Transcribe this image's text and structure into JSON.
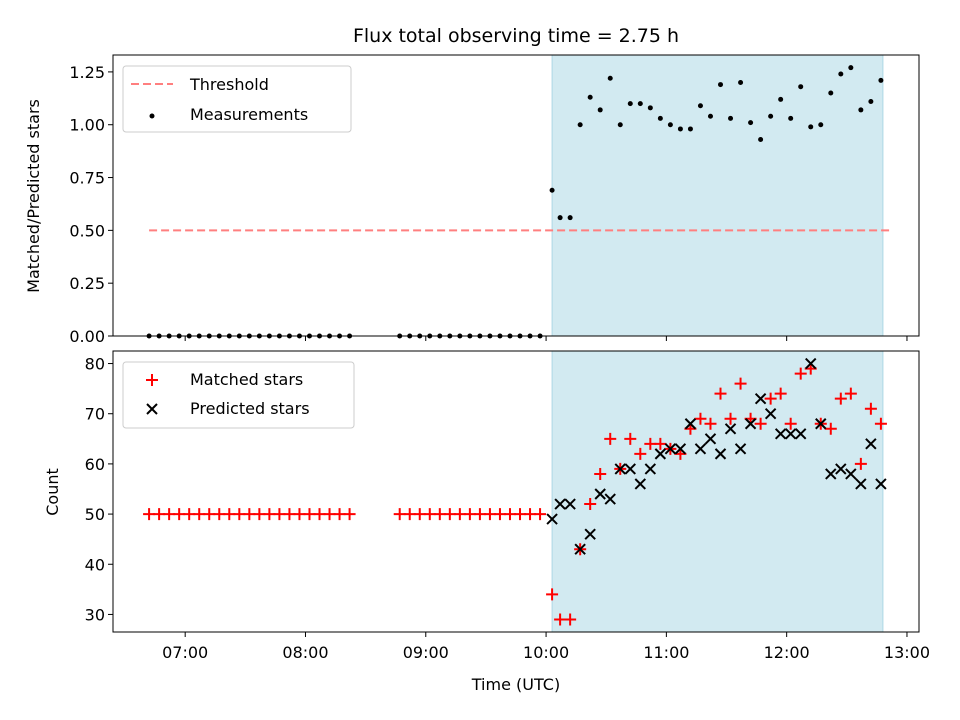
{
  "title": "Flux total observing time = 2.75 h",
  "colors": {
    "threshold": "#ff7f7f",
    "measurement": "#000000",
    "matched": "#ff0000",
    "predicted": "#000000",
    "shade": "#add8e6"
  },
  "chart_data": [
    {
      "type": "scatter",
      "xlabel": "",
      "ylabel": "Matched/Predicted stars",
      "ylim": [
        0,
        1.33
      ],
      "yticks": [
        0.0,
        0.25,
        0.5,
        0.75,
        1.0,
        1.25
      ],
      "ytick_labels": [
        "0.00",
        "0.25",
        "0.50",
        "0.75",
        "1.00",
        "1.25"
      ],
      "shaded_span": [
        "10:03",
        "12:48"
      ],
      "legend": {
        "placement": "upper-left",
        "entries": [
          "Threshold",
          "Measurements"
        ]
      },
      "threshold": {
        "name": "Threshold",
        "x": [
          "06:42",
          "12:53"
        ],
        "y": 0.5,
        "style": "dashed"
      },
      "series": [
        {
          "name": "Measurements",
          "marker": "dot",
          "x": [
            "06:42",
            "06:47",
            "06:52",
            "06:57",
            "07:02",
            "07:07",
            "07:12",
            "07:17",
            "07:22",
            "07:27",
            "07:32",
            "07:37",
            "07:42",
            "07:47",
            "07:52",
            "07:57",
            "08:02",
            "08:07",
            "08:12",
            "08:17",
            "08:22",
            "08:47",
            "08:52",
            "08:57",
            "09:02",
            "09:07",
            "09:12",
            "09:17",
            "09:22",
            "09:27",
            "09:32",
            "09:37",
            "09:42",
            "09:47",
            "09:52",
            "09:57",
            "10:03",
            "10:07",
            "10:12",
            "10:17",
            "10:22",
            "10:27",
            "10:32",
            "10:37",
            "10:42",
            "10:47",
            "10:52",
            "10:57",
            "11:02",
            "11:07",
            "11:12",
            "11:17",
            "11:22",
            "11:27",
            "11:32",
            "11:37",
            "11:42",
            "11:47",
            "11:52",
            "11:57",
            "12:02",
            "12:07",
            "12:12",
            "12:17",
            "12:22",
            "12:27",
            "12:32",
            "12:37",
            "12:42",
            "12:47"
          ],
          "y": [
            0,
            0,
            0,
            0,
            0,
            0,
            0,
            0,
            0,
            0,
            0,
            0,
            0,
            0,
            0,
            0,
            0,
            0,
            0,
            0,
            0,
            0,
            0,
            0,
            0,
            0,
            0,
            0,
            0,
            0,
            0,
            0,
            0,
            0,
            0,
            0,
            0.69,
            0.56,
            0.56,
            1.0,
            1.13,
            1.07,
            1.22,
            1.0,
            1.1,
            1.1,
            1.08,
            1.03,
            1.0,
            0.98,
            0.98,
            1.09,
            1.04,
            1.19,
            1.03,
            1.2,
            1.01,
            0.93,
            1.04,
            1.12,
            1.03,
            1.18,
            0.99,
            1.0,
            1.15,
            1.24,
            1.27,
            1.07,
            1.11,
            1.21
          ]
        }
      ]
    },
    {
      "type": "scatter",
      "xlabel": "Time (UTC)",
      "ylabel": "Count",
      "ylim": [
        26.5,
        82.5
      ],
      "yticks": [
        30,
        40,
        50,
        60,
        70,
        80
      ],
      "xlim": [
        "06:24",
        "13:06"
      ],
      "xticks": [
        "07:00",
        "08:00",
        "09:00",
        "10:00",
        "11:00",
        "12:00",
        "13:00"
      ],
      "shaded_span": [
        "10:03",
        "12:48"
      ],
      "legend": {
        "placement": "upper-left",
        "entries": [
          "Matched stars",
          "Predicted stars"
        ]
      },
      "series": [
        {
          "name": "Matched stars",
          "marker": "plus",
          "x": [
            "06:42",
            "06:47",
            "06:52",
            "06:57",
            "07:02",
            "07:07",
            "07:12",
            "07:17",
            "07:22",
            "07:27",
            "07:32",
            "07:37",
            "07:42",
            "07:47",
            "07:52",
            "07:57",
            "08:02",
            "08:07",
            "08:12",
            "08:17",
            "08:22",
            "08:47",
            "08:52",
            "08:57",
            "09:02",
            "09:07",
            "09:12",
            "09:17",
            "09:22",
            "09:27",
            "09:32",
            "09:37",
            "09:42",
            "09:47",
            "09:52",
            "09:57",
            "10:03",
            "10:07",
            "10:12",
            "10:17",
            "10:22",
            "10:27",
            "10:32",
            "10:37",
            "10:42",
            "10:47",
            "10:52",
            "10:57",
            "11:02",
            "11:07",
            "11:12",
            "11:17",
            "11:22",
            "11:27",
            "11:32",
            "11:37",
            "11:42",
            "11:47",
            "11:52",
            "11:57",
            "12:02",
            "12:07",
            "12:12",
            "12:17",
            "12:22",
            "12:27",
            "12:32",
            "12:37",
            "12:42",
            "12:47"
          ],
          "y": [
            50,
            50,
            50,
            50,
            50,
            50,
            50,
            50,
            50,
            50,
            50,
            50,
            50,
            50,
            50,
            50,
            50,
            50,
            50,
            50,
            50,
            50,
            50,
            50,
            50,
            50,
            50,
            50,
            50,
            50,
            50,
            50,
            50,
            50,
            50,
            50,
            34,
            29,
            29,
            43,
            52,
            58,
            65,
            59,
            65,
            62,
            64,
            64,
            63,
            62,
            67,
            69,
            68,
            74,
            69,
            76,
            69,
            68,
            73,
            74,
            68,
            78,
            79,
            68,
            67,
            73,
            74,
            60,
            71,
            68
          ]
        },
        {
          "name": "Predicted stars",
          "marker": "x",
          "x": [
            "10:03",
            "10:07",
            "10:12",
            "10:17",
            "10:22",
            "10:27",
            "10:32",
            "10:37",
            "10:42",
            "10:47",
            "10:52",
            "10:57",
            "11:02",
            "11:07",
            "11:12",
            "11:17",
            "11:22",
            "11:27",
            "11:32",
            "11:37",
            "11:42",
            "11:47",
            "11:52",
            "11:57",
            "12:02",
            "12:07",
            "12:12",
            "12:17",
            "12:22",
            "12:27",
            "12:32",
            "12:37",
            "12:42",
            "12:47"
          ],
          "y": [
            49,
            52,
            52,
            43,
            46,
            54,
            53,
            59,
            59,
            56,
            59,
            62,
            63,
            63,
            68,
            63,
            65,
            62,
            67,
            63,
            68,
            73,
            70,
            66,
            66,
            66,
            80,
            68,
            58,
            59,
            58,
            56,
            64,
            56
          ]
        }
      ]
    }
  ]
}
